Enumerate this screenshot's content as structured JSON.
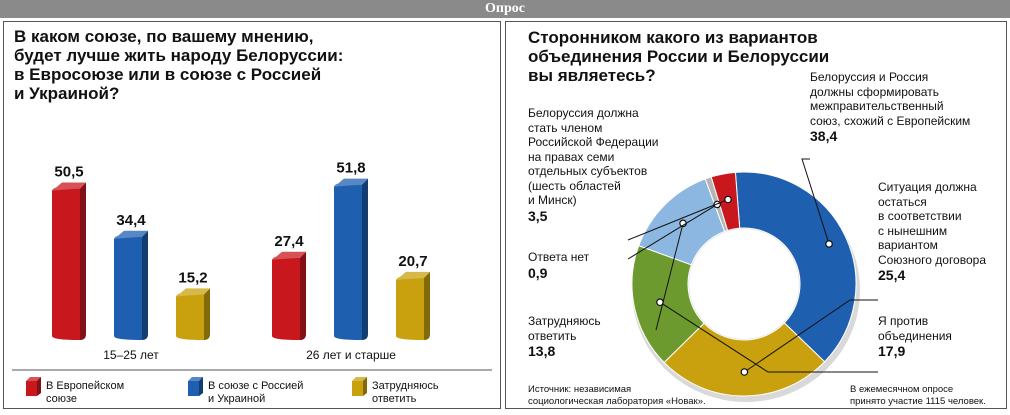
{
  "header": {
    "title": "Опрос"
  },
  "left": {
    "title_lines": [
      "В каком союзе, по вашему мнению,",
      "будет лучше жить народу Белоруссии:",
      "в Евросоюзе или в союзе с Россией",
      "и Украиной?"
    ],
    "legend": [
      {
        "lines": [
          "В Европейском",
          "союзе"
        ],
        "color": "#c8181e"
      },
      {
        "lines": [
          "В союзе с Россией",
          "и Украиной"
        ],
        "color": "#1f5fb0"
      },
      {
        "lines": [
          "Затрудняюсь",
          "ответить"
        ],
        "color": "#c9a10e"
      }
    ]
  },
  "right": {
    "title_lines": [
      "Сторонником какого из вариантов",
      "объединения России и Белоруссии",
      "вы являетесь?"
    ],
    "source_lines": [
      "Источник: независимая",
      "социологическая лаборатория «Новак»."
    ],
    "note_lines": [
      "В ежемесячном опросе",
      "принято участие 1115 человек."
    ]
  },
  "chart_data": [
    {
      "type": "bar",
      "categories": [
        "15–25 лет",
        "26 лет и старше"
      ],
      "series": [
        {
          "name": "В Европейском союзе",
          "values": [
            50.5,
            27.4
          ]
        },
        {
          "name": "В союзе с Россией и Украиной",
          "values": [
            34.4,
            51.8
          ]
        },
        {
          "name": "Затрудняюсь ответить",
          "values": [
            15.2,
            20.7
          ]
        }
      ],
      "value_labels": [
        [
          "50,5",
          "27,4"
        ],
        [
          "34,4",
          "51,8"
        ],
        [
          "15,2",
          "20,7"
        ]
      ],
      "colors": [
        "#c8181e",
        "#1f5fb0",
        "#c9a10e"
      ],
      "ylim": [
        0,
        60
      ],
      "legend": "bottom",
      "grid": false
    },
    {
      "type": "pie",
      "donut": true,
      "slices": [
        {
          "label_lines": [
            "Белоруссия и Россия",
            "должны сформировать",
            "межправительственный",
            "союз, схожий с Европейским"
          ],
          "value": 38.4,
          "value_label": "38,4",
          "color": "#1f5fb0"
        },
        {
          "label_lines": [
            "Ситуация должна",
            "остаться",
            "в соответствии",
            "с нынешним",
            "вариантом",
            "Союзного договора"
          ],
          "value": 25.4,
          "value_label": "25,4",
          "color": "#c9a10e"
        },
        {
          "label_lines": [
            "Я против",
            "объединения"
          ],
          "value": 17.9,
          "value_label": "17,9",
          "color": "#6d9a2e"
        },
        {
          "label_lines": [
            "Затрудняюсь",
            "ответить"
          ],
          "value": 13.8,
          "value_label": "13,8",
          "color": "#8cb7e0"
        },
        {
          "label_lines": [
            "Ответа нет"
          ],
          "value": 0.9,
          "value_label": "0,9",
          "color": "#b5b5b5"
        },
        {
          "label_lines": [
            "Белоруссия должна",
            "стать членом",
            "Российской Федерации",
            "на правах семи",
            "отдельных субъектов",
            "(шесть областей",
            "и Минск)"
          ],
          "value": 3.5,
          "value_label": "3,5",
          "color": "#c8181e"
        }
      ]
    }
  ]
}
